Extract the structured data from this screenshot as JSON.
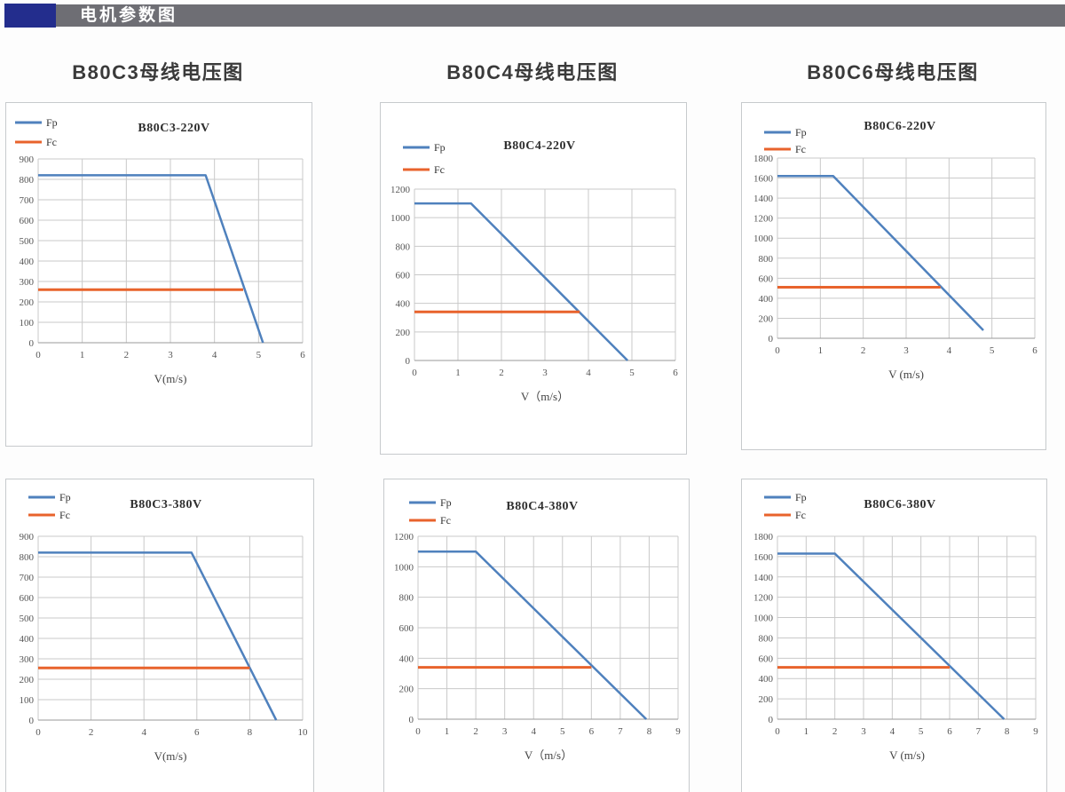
{
  "header": {
    "title": "电机参数图",
    "accent_color": "#232d8d",
    "bar_color": "#6e6e74"
  },
  "colors": {
    "fp": "#4f81bd",
    "fc": "#e8632c",
    "grid": "#c9c9c9",
    "axis": "#9a9a9a"
  },
  "legend_labels": [
    "Fp",
    "Fc"
  ],
  "chart_data": [
    {
      "type": "line",
      "heading": "B80C3母线电压图",
      "title": "B80C3-220V",
      "xlabel": "V(m/s)",
      "xlim": [
        0,
        6
      ],
      "xstep": 1,
      "ylim": [
        0,
        900
      ],
      "ystep": 100,
      "grid": true,
      "legend_position": "top-left",
      "series": [
        {
          "name": "Fp",
          "color_key": "fp",
          "points": [
            [
              0,
              820
            ],
            [
              3.8,
              820
            ],
            [
              5.1,
              0
            ]
          ]
        },
        {
          "name": "Fc",
          "color_key": "fc",
          "points": [
            [
              0,
              260
            ],
            [
              4.65,
              260
            ]
          ]
        }
      ]
    },
    {
      "type": "line",
      "heading": "B80C4母线电压图",
      "title": "B80C4-220V",
      "xlabel": "V（m/s）",
      "xlim": [
        0,
        6
      ],
      "xstep": 1,
      "ylim": [
        0,
        1200
      ],
      "ystep": 200,
      "grid": true,
      "legend_position": "top-left",
      "series": [
        {
          "name": "Fp",
          "color_key": "fp",
          "points": [
            [
              0,
              1100
            ],
            [
              1.3,
              1100
            ],
            [
              4.9,
              0
            ]
          ]
        },
        {
          "name": "Fc",
          "color_key": "fc",
          "points": [
            [
              0,
              340
            ],
            [
              3.8,
              340
            ]
          ]
        }
      ]
    },
    {
      "type": "line",
      "heading": "B80C6母线电压图",
      "title": "B80C6-220V",
      "xlabel": "V (m/s)",
      "xlim": [
        0,
        6
      ],
      "xstep": 1,
      "ylim": [
        0,
        1800
      ],
      "ystep": 200,
      "grid": true,
      "legend_position": "top-left",
      "series": [
        {
          "name": "Fp",
          "color_key": "fp",
          "points": [
            [
              0,
              1620
            ],
            [
              1.3,
              1620
            ],
            [
              4.8,
              80
            ]
          ]
        },
        {
          "name": "Fc",
          "color_key": "fc",
          "points": [
            [
              0,
              510
            ],
            [
              3.8,
              510
            ]
          ]
        }
      ]
    },
    {
      "type": "line",
      "heading": "",
      "title": "B80C3-380V",
      "xlabel": "V(m/s)",
      "xlim": [
        0,
        10
      ],
      "xstep": 2,
      "ylim": [
        0,
        900
      ],
      "ystep": 100,
      "grid": true,
      "legend_position": "top-left",
      "series": [
        {
          "name": "Fp",
          "color_key": "fp",
          "points": [
            [
              0,
              820
            ],
            [
              5.8,
              820
            ],
            [
              9,
              0
            ]
          ]
        },
        {
          "name": "Fc",
          "color_key": "fc",
          "points": [
            [
              0,
              255
            ],
            [
              8,
              255
            ]
          ]
        }
      ]
    },
    {
      "type": "line",
      "heading": "",
      "title": "B80C4-380V",
      "xlabel": "V（m/s）",
      "xlim": [
        0,
        9
      ],
      "xstep": 1,
      "ylim": [
        0,
        1200
      ],
      "ystep": 200,
      "grid": true,
      "legend_position": "top-left",
      "series": [
        {
          "name": "Fp",
          "color_key": "fp",
          "points": [
            [
              0,
              1100
            ],
            [
              2,
              1100
            ],
            [
              7.9,
              0
            ]
          ]
        },
        {
          "name": "Fc",
          "color_key": "fc",
          "points": [
            [
              0,
              340
            ],
            [
              6,
              340
            ]
          ]
        }
      ]
    },
    {
      "type": "line",
      "heading": "",
      "title": "B80C6-380V",
      "xlabel": "V (m/s)",
      "xlim": [
        0,
        9
      ],
      "xstep": 1,
      "ylim": [
        0,
        1800
      ],
      "ystep": 200,
      "grid": true,
      "legend_position": "top-left",
      "series": [
        {
          "name": "Fp",
          "color_key": "fp",
          "points": [
            [
              0,
              1630
            ],
            [
              2,
              1630
            ],
            [
              7.9,
              0
            ]
          ]
        },
        {
          "name": "Fc",
          "color_key": "fc",
          "points": [
            [
              0,
              510
            ],
            [
              6,
              510
            ]
          ]
        }
      ]
    }
  ]
}
